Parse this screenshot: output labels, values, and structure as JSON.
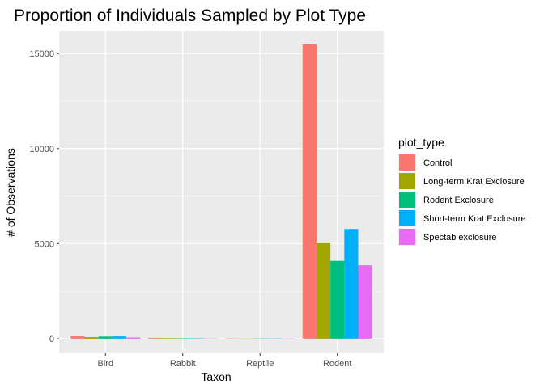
{
  "chart_data": {
    "type": "bar",
    "title": "Proportion of Individuals Sampled by Plot Type",
    "xlabel": "Taxon",
    "ylabel": "# of Observations",
    "categories": [
      "Bird",
      "Rabbit",
      "Reptile",
      "Rodent"
    ],
    "y_ticks": [
      0,
      5000,
      10000,
      15000
    ],
    "y_tick_labels": [
      "0",
      "5000",
      "10000",
      "15000"
    ],
    "ylim": [
      -770,
      16200
    ],
    "grid": true,
    "legend": {
      "title": "plot_type",
      "position": "right"
    },
    "series": [
      {
        "name": "Control",
        "color": "#F8766D",
        "values": [
          120,
          40,
          10,
          15480
        ]
      },
      {
        "name": "Long-term Krat Exclosure",
        "color": "#A3A500",
        "values": [
          80,
          30,
          5,
          5020
        ]
      },
      {
        "name": "Rodent Exclosure",
        "color": "#00BF7D",
        "values": [
          110,
          20,
          10,
          4090
        ]
      },
      {
        "name": "Short-term Krat Exclosure",
        "color": "#00B0F6",
        "values": [
          120,
          15,
          10,
          5770
        ]
      },
      {
        "name": "Spectab exclosure",
        "color": "#E76BF3",
        "values": [
          60,
          10,
          5,
          3860
        ]
      }
    ]
  }
}
